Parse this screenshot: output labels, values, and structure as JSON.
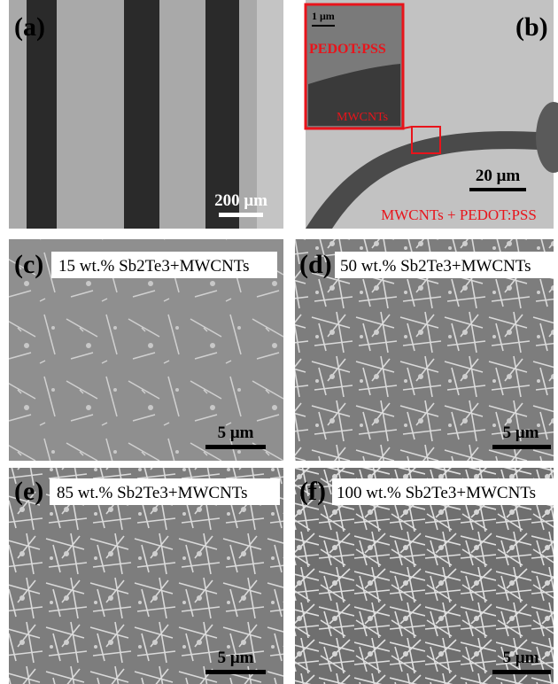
{
  "panels": [
    {
      "label": "(a)",
      "scale_bar": "200 μm"
    },
    {
      "label": "(b)",
      "scale_bar": "20 μm",
      "caption": "MWCNTs + PEDOT:PSS",
      "inset": {
        "scale_bar": "1 μm",
        "top_label": "PEDOT:PSS",
        "bottom_label": "MWCNTs"
      }
    },
    {
      "label": "(c)",
      "caption": "15 wt.% Sb2Te3+MWCNTs",
      "scale_bar": "5 μm"
    },
    {
      "label": "(d)",
      "caption": "50 wt.% Sb2Te3+MWCNTs",
      "scale_bar": "5 μm"
    },
    {
      "label": "(e)",
      "caption": "85 wt.% Sb2Te3+MWCNTs",
      "scale_bar": "5 μm"
    },
    {
      "label": "(f)",
      "caption": "100 wt.% Sb2Te3+MWCNTs",
      "scale_bar": "5 μm"
    }
  ]
}
